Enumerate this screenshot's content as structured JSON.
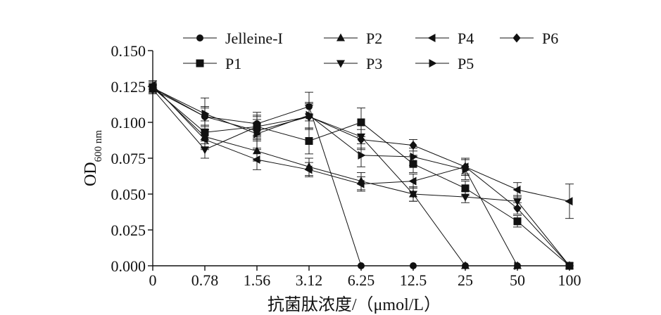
{
  "chart_data": {
    "type": "line",
    "xlabel": "抗菌肽浓度/（μmol/L）",
    "ylabel": {
      "main": "OD",
      "sub": "600 nm"
    },
    "categories": [
      "0",
      "0.78",
      "1.56",
      "3.12",
      "6.25",
      "12.5",
      "25",
      "50",
      "100"
    ],
    "y_ticks": [
      "0.000",
      "0.025",
      "0.050",
      "0.075",
      "0.100",
      "0.125",
      "0.150"
    ],
    "ylim": [
      0,
      0.15
    ],
    "grid": false,
    "legend_position": "top",
    "series": [
      {
        "name": "Jelleine-I",
        "marker": "circle",
        "values": [
          0.124,
          0.104,
          0.099,
          0.111,
          0.0,
          0.0,
          0.0,
          0.0,
          0.0
        ],
        "errors": [
          0.004,
          0.006,
          0.008,
          0.01,
          0.0,
          0.0,
          0.0,
          0.0,
          0.0
        ]
      },
      {
        "name": "P1",
        "marker": "square",
        "values": [
          0.124,
          0.093,
          0.097,
          0.087,
          0.1,
          0.071,
          0.054,
          0.031,
          0.0
        ],
        "errors": [
          0.003,
          0.008,
          0.007,
          0.009,
          0.01,
          0.006,
          0.005,
          0.004,
          0.0
        ]
      },
      {
        "name": "P2",
        "marker": "triangle-up",
        "values": [
          0.125,
          0.09,
          0.08,
          0.069,
          0.059,
          0.05,
          0.0,
          0.0,
          0.0
        ],
        "errors": [
          0.004,
          0.008,
          0.007,
          0.006,
          0.006,
          0.005,
          0.0,
          0.0,
          0.0
        ]
      },
      {
        "name": "P3",
        "marker": "triangle-down",
        "values": [
          0.123,
          0.081,
          0.097,
          0.104,
          0.09,
          0.05,
          0.048,
          0.045,
          0.0
        ],
        "errors": [
          0.003,
          0.006,
          0.008,
          0.008,
          0.008,
          0.005,
          0.004,
          0.004,
          0.0
        ]
      },
      {
        "name": "P4",
        "marker": "triangle-left",
        "values": [
          0.126,
          0.088,
          0.074,
          0.067,
          0.057,
          0.059,
          0.069,
          0.053,
          0.045
        ],
        "errors": [
          0.003,
          0.007,
          0.007,
          0.005,
          0.005,
          0.005,
          0.006,
          0.005,
          0.012
        ]
      },
      {
        "name": "P5",
        "marker": "triangle-right",
        "values": [
          0.124,
          0.106,
          0.092,
          0.105,
          0.077,
          0.076,
          0.067,
          0.0,
          0.0
        ],
        "errors": [
          0.003,
          0.011,
          0.01,
          0.009,
          0.008,
          0.006,
          0.007,
          0.0,
          0.0
        ]
      },
      {
        "name": "P6",
        "marker": "diamond",
        "values": [
          0.123,
          0.104,
          0.094,
          0.104,
          0.088,
          0.084,
          0.069,
          0.04,
          0.0
        ],
        "errors": [
          0.003,
          0.007,
          0.006,
          0.009,
          0.007,
          0.004,
          0.005,
          0.004,
          0.0
        ]
      }
    ]
  }
}
